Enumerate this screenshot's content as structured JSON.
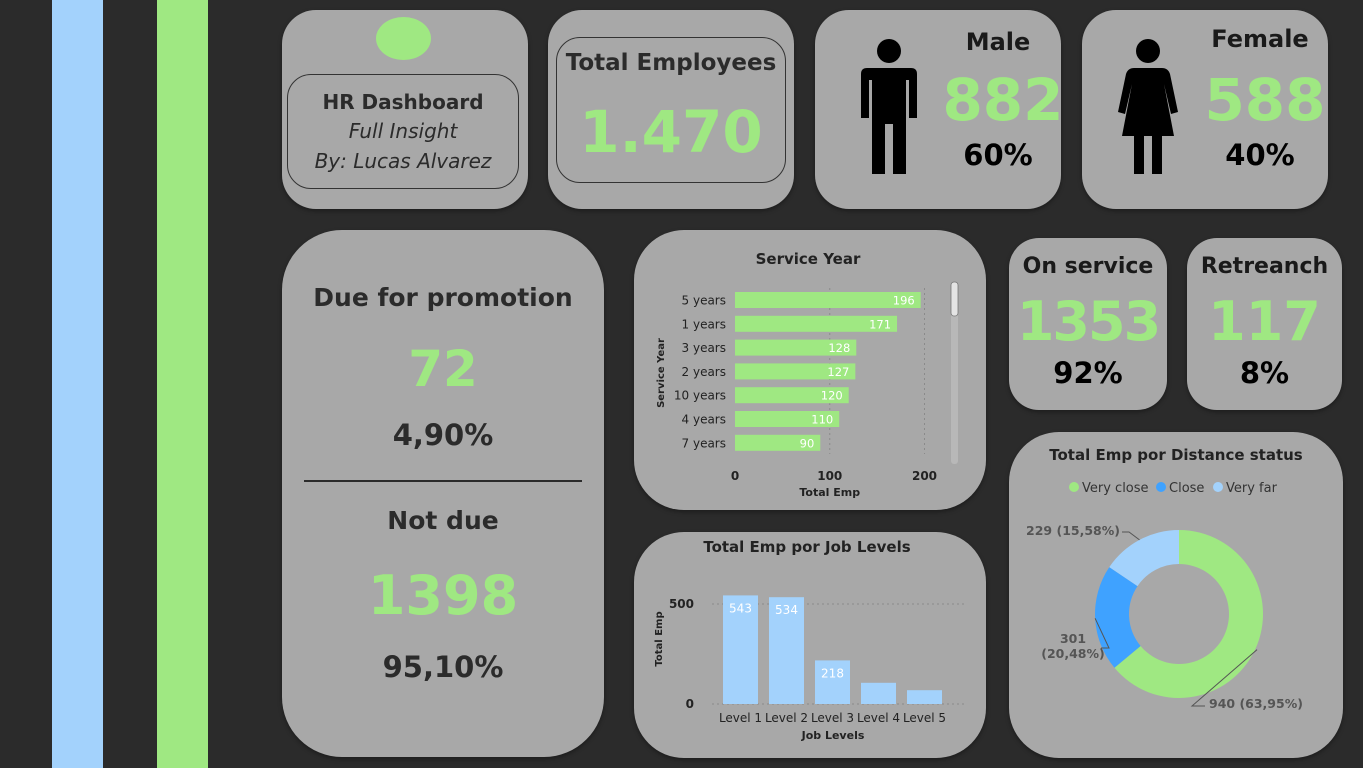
{
  "colors": {
    "background": "#2b2b2b",
    "card": "#a8a8a8",
    "accent_green": "#9fe882",
    "accent_lightblue": "#a3d2fc",
    "accent_blue": "#3fa2ff"
  },
  "header": {
    "title": "HR Dashboard",
    "subtitle": "Full Insight",
    "author": "By: Lucas Alvarez"
  },
  "total": {
    "label": "Total Employees",
    "value": "1.470"
  },
  "male": {
    "label": "Male",
    "value": "882",
    "pct": "60%",
    "icon": "male-person-icon"
  },
  "female": {
    "label": "Female",
    "value": "588",
    "pct": "40%",
    "icon": "female-person-icon"
  },
  "promotion": {
    "due_label": "Due for promotion",
    "due_value": "72",
    "due_pct": "4,90%",
    "not_label": "Not due",
    "not_value": "1398",
    "not_pct": "95,10%"
  },
  "on_service": {
    "label": "On service",
    "value": "1353",
    "pct": "92%"
  },
  "retrench": {
    "label": "Retreanch",
    "value": "117",
    "pct": "8%"
  },
  "chart_data": [
    {
      "type": "bar",
      "orientation": "horizontal",
      "title": "Service Year",
      "xlabel": "Total Emp",
      "ylabel": "Service Year",
      "categories": [
        "5 years",
        "1 years",
        "3 years",
        "2 years",
        "10 years",
        "4 years",
        "7 years"
      ],
      "values": [
        196,
        171,
        128,
        127,
        120,
        110,
        90
      ],
      "xlim": [
        0,
        210
      ],
      "xticks": [
        "0",
        "100",
        "200"
      ],
      "grid": true,
      "scrollbar": true
    },
    {
      "type": "bar",
      "title": "Total Emp por Job Levels",
      "xlabel": "Job Levels",
      "ylabel": "Total Emp",
      "categories": [
        "Level 1",
        "Level 2",
        "Level 3",
        "Level 4",
        "Level 5"
      ],
      "values": [
        543,
        534,
        218,
        106,
        69
      ],
      "data_labels": [
        "543",
        "534",
        "218",
        "",
        ""
      ],
      "ylim": [
        0,
        560
      ],
      "yticks": [
        "0",
        "500"
      ],
      "grid": true
    },
    {
      "type": "pie",
      "donut": true,
      "title": "Total Emp por Distance status",
      "legend_position": "top",
      "categories": [
        "Very close",
        "Close",
        "Very far"
      ],
      "values": [
        940,
        301,
        229
      ],
      "labels": [
        [
          "940 (63,95%)"
        ],
        [
          "301",
          "(20,48%)"
        ],
        [
          "229 (15,58%)"
        ]
      ],
      "colors": [
        "#9fe882",
        "#3fa2ff",
        "#a3d2fc"
      ]
    }
  ]
}
